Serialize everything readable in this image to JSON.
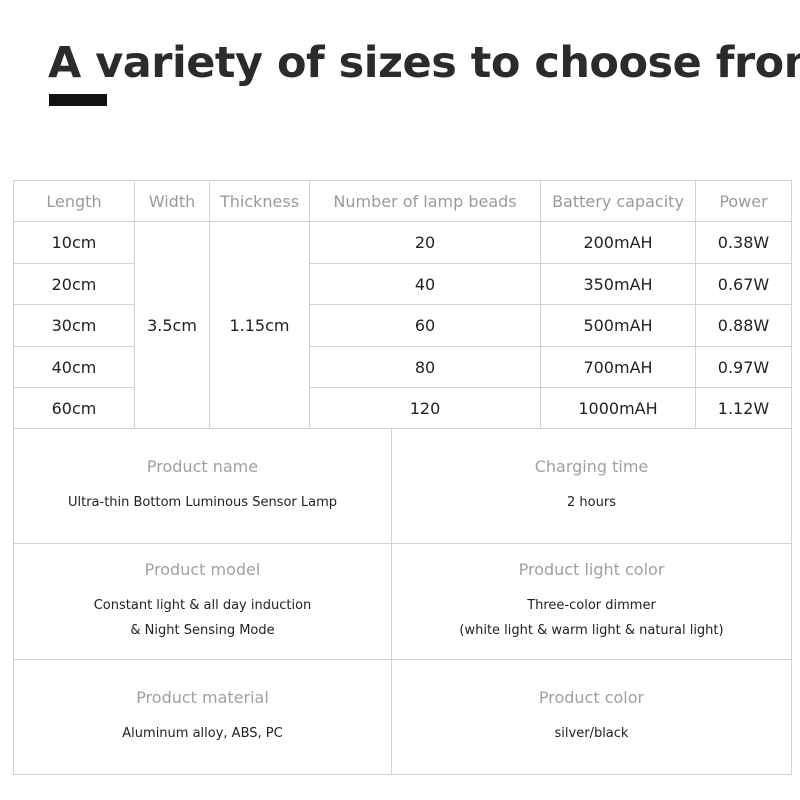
{
  "title": "A variety of sizes to choose from",
  "table": {
    "headers": [
      "Length",
      "Width",
      "Thickness",
      "Number of lamp beads",
      "Battery capacity",
      "Power"
    ],
    "lengths": [
      "10cm",
      "20cm",
      "30cm",
      "40cm",
      "60cm"
    ],
    "width": "3.5cm",
    "thickness": "1.15cm",
    "beads": [
      "20",
      "40",
      "60",
      "80",
      "120"
    ],
    "battery": [
      "200mAH",
      "350mAH",
      "500mAH",
      "700mAH",
      "1000mAH"
    ],
    "power": [
      "0.38W",
      "0.67W",
      "0.88W",
      "0.97W",
      "1.12W"
    ]
  },
  "specs": [
    {
      "label": "Product name",
      "value": "Ultra-thin Bottom Luminous Sensor Lamp",
      "value2": ""
    },
    {
      "label": "Charging time",
      "value": "2 hours",
      "value2": ""
    },
    {
      "label": "Product model",
      "value": "Constant light & all day induction",
      "value2": "& Night Sensing Mode"
    },
    {
      "label": "Product light color",
      "value": "Three-color dimmer",
      "value2": "(white light & warm light & natural light)"
    },
    {
      "label": "Product material",
      "value": "Aluminum alloy, ABS, PC",
      "value2": ""
    },
    {
      "label": "Product color",
      "value": "silver/black",
      "value2": ""
    }
  ]
}
